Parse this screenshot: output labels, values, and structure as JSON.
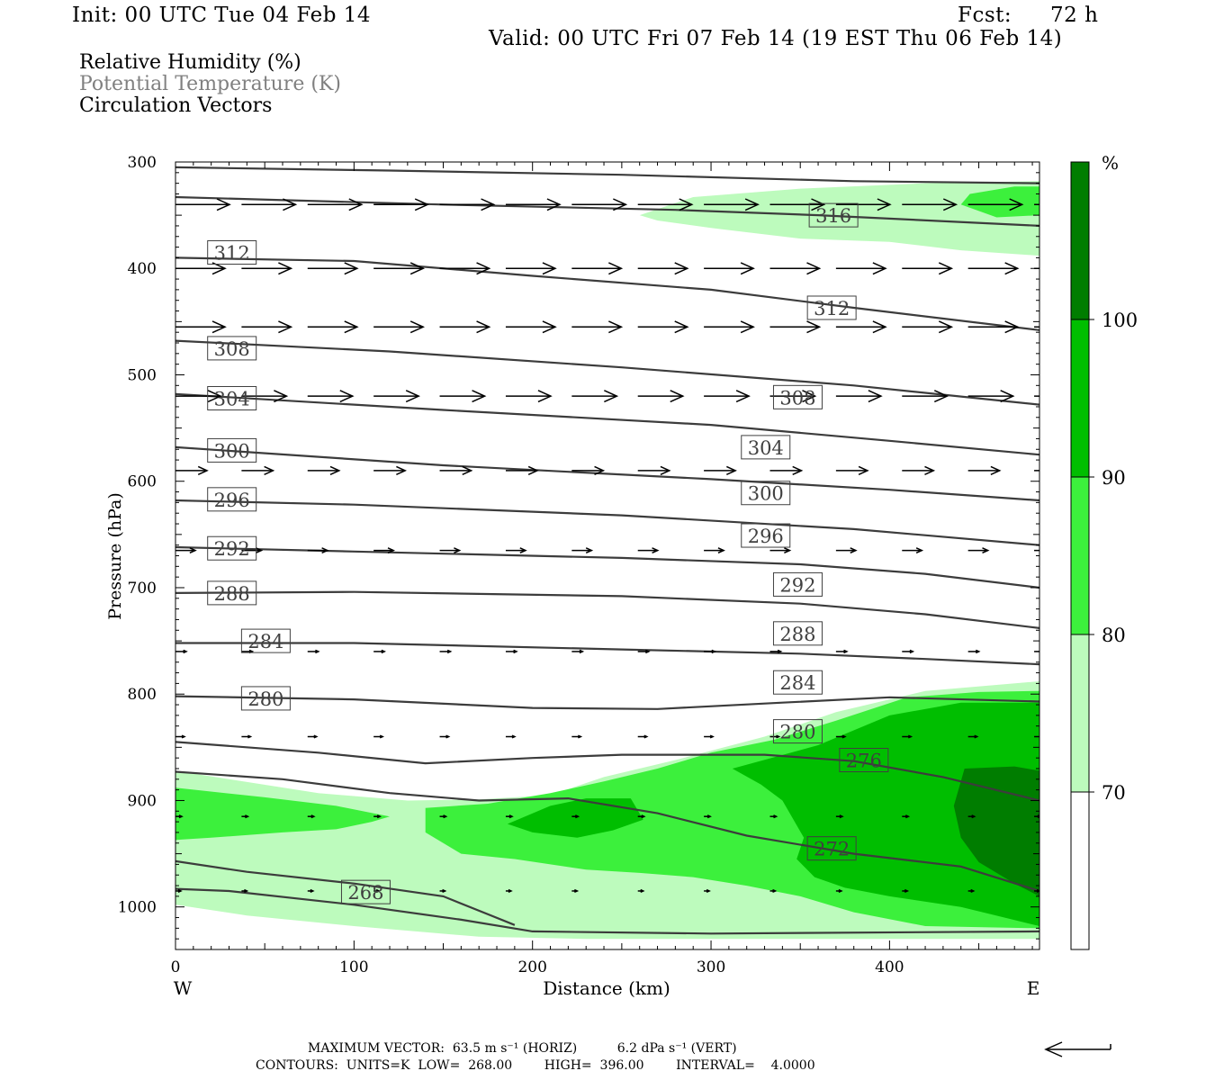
{
  "header": {
    "init": "Init: 00 UTC Tue 04 Feb 14",
    "fcst_label": "Fcst:",
    "fcst_value": "72 h",
    "valid": "Valid: 00 UTC Fri 07 Feb 14 (19 EST Thu 06 Feb 14)"
  },
  "legend": {
    "field1": "Relative Humidity (%)",
    "field2": "Potential Temperature (K)",
    "field3": "Circulation Vectors"
  },
  "colors": {
    "rh70": "#bdfbbd",
    "rh80": "#3cf03c",
    "rh90": "#00be00",
    "rh100": "#007d00",
    "theta_line": "#3c3c3c",
    "theta_label_text": "#404040"
  },
  "chart_data": {
    "type": "cross-section",
    "xlabel": "Distance (km)",
    "ylabel": "Pressure (hPa)",
    "x_left_label": "W",
    "x_right_label": "E",
    "xlim": [
      0,
      484
    ],
    "ylim": [
      300,
      1040
    ],
    "y_reversed": true,
    "x_ticks": [
      0,
      100,
      200,
      300,
      400
    ],
    "y_ticks": [
      300,
      400,
      500,
      600,
      700,
      800,
      900,
      1000
    ],
    "colorbar": {
      "unit": "%",
      "levels": [
        70,
        80,
        90,
        100
      ],
      "labels": [
        "70",
        "80",
        "90",
        "100"
      ]
    },
    "rh_regions": [
      {
        "level": 70,
        "points": [
          [
            260,
            350
          ],
          [
            290,
            333
          ],
          [
            350,
            325
          ],
          [
            420,
            320
          ],
          [
            484,
            318
          ],
          [
            484,
            388
          ],
          [
            440,
            383
          ],
          [
            400,
            375
          ],
          [
            350,
            372
          ],
          [
            300,
            362
          ],
          [
            270,
            355
          ]
        ]
      },
      {
        "level": 80,
        "points": [
          [
            440,
            340
          ],
          [
            445,
            330
          ],
          [
            470,
            323
          ],
          [
            484,
            323
          ],
          [
            484,
            350
          ],
          [
            460,
            352
          ]
        ]
      },
      {
        "level": 70,
        "points": [
          [
            0,
            872
          ],
          [
            30,
            880
          ],
          [
            80,
            893
          ],
          [
            130,
            900
          ],
          [
            170,
            899
          ],
          [
            210,
            895
          ],
          [
            240,
            878
          ],
          [
            280,
            862
          ],
          [
            330,
            840
          ],
          [
            370,
            817
          ],
          [
            420,
            797
          ],
          [
            484,
            788
          ],
          [
            484,
            1030
          ],
          [
            400,
            1030
          ],
          [
            330,
            1030
          ],
          [
            230,
            1030
          ],
          [
            170,
            1028
          ],
          [
            100,
            1018
          ],
          [
            40,
            1008
          ],
          [
            0,
            998
          ],
          [
            0,
            965
          ],
          [
            30,
            960
          ],
          [
            60,
            958
          ],
          [
            100,
            962
          ],
          [
            150,
            958
          ],
          [
            190,
            955
          ],
          [
            220,
            962
          ],
          [
            235,
            975
          ],
          [
            230,
            985
          ],
          [
            215,
            990
          ],
          [
            195,
            993
          ],
          [
            175,
            988
          ],
          [
            155,
            983
          ],
          [
            120,
            972
          ],
          [
            90,
            968
          ],
          [
            60,
            972
          ],
          [
            30,
            985
          ],
          [
            0,
            988
          ]
        ]
      },
      {
        "level": 80,
        "points": [
          [
            0,
            888
          ],
          [
            50,
            897
          ],
          [
            90,
            905
          ],
          [
            120,
            915
          ],
          [
            110,
            920
          ],
          [
            90,
            927
          ],
          [
            60,
            930
          ],
          [
            20,
            935
          ],
          [
            0,
            937
          ]
        ]
      },
      {
        "level": 80,
        "points": [
          [
            140,
            907
          ],
          [
            175,
            903
          ],
          [
            210,
            893
          ],
          [
            240,
            882
          ],
          [
            270,
            870
          ],
          [
            300,
            855
          ],
          [
            335,
            843
          ],
          [
            370,
            825
          ],
          [
            410,
            803
          ],
          [
            450,
            798
          ],
          [
            484,
            797
          ],
          [
            484,
            1020
          ],
          [
            420,
            1018
          ],
          [
            380,
            1005
          ],
          [
            350,
            990
          ],
          [
            320,
            980
          ],
          [
            290,
            972
          ],
          [
            260,
            968
          ],
          [
            230,
            965
          ],
          [
            210,
            960
          ],
          [
            190,
            955
          ],
          [
            160,
            950
          ],
          [
            140,
            930
          ]
        ]
      },
      {
        "level": 90,
        "points": [
          [
            186,
            922
          ],
          [
            210,
            905
          ],
          [
            230,
            898
          ],
          [
            255,
            898
          ],
          [
            262,
            918
          ],
          [
            245,
            928
          ],
          [
            225,
            935
          ],
          [
            200,
            930
          ]
        ]
      },
      {
        "level": 90,
        "points": [
          [
            312,
            870
          ],
          [
            360,
            848
          ],
          [
            400,
            820
          ],
          [
            440,
            808
          ],
          [
            484,
            808
          ],
          [
            484,
            1018
          ],
          [
            440,
            1000
          ],
          [
            400,
            990
          ],
          [
            375,
            982
          ],
          [
            358,
            972
          ],
          [
            348,
            955
          ],
          [
            352,
            935
          ],
          [
            340,
            900
          ],
          [
            328,
            885
          ]
        ]
      },
      {
        "level": 100,
        "points": [
          [
            442,
            870
          ],
          [
            470,
            868
          ],
          [
            484,
            872
          ],
          [
            484,
            990
          ],
          [
            470,
            978
          ],
          [
            450,
            958
          ],
          [
            440,
            935
          ],
          [
            436,
            905
          ]
        ]
      }
    ],
    "theta_lines": [
      {
        "label": "312",
        "points": [
          [
            0,
            305
          ],
          [
            120,
            308
          ],
          [
            250,
            312
          ],
          [
            380,
            318
          ],
          [
            484,
            320
          ]
        ]
      },
      {
        "label": "316",
        "points": [
          [
            0,
            333
          ],
          [
            150,
            340
          ],
          [
            280,
            345
          ],
          [
            360,
            350
          ],
          [
            484,
            360
          ]
        ]
      },
      {
        "label": "312",
        "points": [
          [
            0,
            390
          ],
          [
            100,
            393
          ],
          [
            200,
            407
          ],
          [
            300,
            420
          ],
          [
            380,
            437
          ],
          [
            484,
            458
          ]
        ]
      },
      {
        "label": "308",
        "points": [
          [
            0,
            468
          ],
          [
            120,
            478
          ],
          [
            250,
            493
          ],
          [
            380,
            510
          ],
          [
            484,
            528
          ]
        ]
      },
      {
        "label": "304",
        "points": [
          [
            0,
            518
          ],
          [
            150,
            533
          ],
          [
            300,
            547
          ],
          [
            400,
            562
          ],
          [
            484,
            575
          ]
        ]
      },
      {
        "label": "300",
        "points": [
          [
            0,
            568
          ],
          [
            150,
            585
          ],
          [
            300,
            598
          ],
          [
            400,
            608
          ],
          [
            484,
            618
          ]
        ]
      },
      {
        "label": "296",
        "points": [
          [
            0,
            618
          ],
          [
            100,
            622
          ],
          [
            250,
            632
          ],
          [
            380,
            645
          ],
          [
            484,
            660
          ]
        ]
      },
      {
        "label": "292",
        "points": [
          [
            0,
            662
          ],
          [
            100,
            666
          ],
          [
            250,
            672
          ],
          [
            350,
            678
          ],
          [
            420,
            687
          ],
          [
            484,
            700
          ]
        ]
      },
      {
        "label": "288",
        "points": [
          [
            0,
            705
          ],
          [
            100,
            704
          ],
          [
            250,
            708
          ],
          [
            350,
            715
          ],
          [
            420,
            725
          ],
          [
            484,
            738
          ]
        ]
      },
      {
        "label": "284",
        "points": [
          [
            0,
            752
          ],
          [
            100,
            752
          ],
          [
            250,
            758
          ],
          [
            350,
            762
          ],
          [
            420,
            767
          ],
          [
            484,
            772
          ]
        ]
      },
      {
        "label": "280",
        "points": [
          [
            0,
            802
          ],
          [
            100,
            805
          ],
          [
            200,
            813
          ],
          [
            270,
            814
          ],
          [
            340,
            808
          ],
          [
            400,
            803
          ],
          [
            484,
            807
          ]
        ]
      },
      {
        "label": "276",
        "points": [
          [
            0,
            845
          ],
          [
            80,
            855
          ],
          [
            140,
            865
          ],
          [
            200,
            860
          ],
          [
            250,
            857
          ],
          [
            330,
            857
          ],
          [
            380,
            863
          ],
          [
            430,
            878
          ],
          [
            484,
            900
          ]
        ]
      },
      {
        "label": "",
        "points": [
          [
            0,
            873
          ],
          [
            60,
            880
          ],
          [
            120,
            893
          ],
          [
            170,
            900
          ],
          [
            220,
            898
          ],
          [
            270,
            912
          ],
          [
            320,
            933
          ],
          [
            380,
            950
          ],
          [
            440,
            962
          ],
          [
            484,
            985
          ]
        ]
      },
      {
        "label": "268",
        "points": [
          [
            0,
            957
          ],
          [
            40,
            967
          ],
          [
            100,
            978
          ],
          [
            150,
            990
          ],
          [
            190,
            1017
          ]
        ]
      },
      {
        "label": "",
        "points": [
          [
            0,
            983
          ],
          [
            30,
            985
          ],
          [
            100,
            998
          ],
          [
            160,
            1012
          ],
          [
            200,
            1023
          ],
          [
            300,
            1025
          ],
          [
            484,
            1023
          ]
        ]
      }
    ],
    "theta_labels": [
      {
        "text": "316",
        "x": 355,
        "p": 350
      },
      {
        "text": "312",
        "x": 18,
        "p": 385
      },
      {
        "text": "312",
        "x": 354,
        "p": 437
      },
      {
        "text": "308",
        "x": 18,
        "p": 475
      },
      {
        "text": "308",
        "x": 335,
        "p": 521
      },
      {
        "text": "304",
        "x": 18,
        "p": 522
      },
      {
        "text": "304",
        "x": 317,
        "p": 568
      },
      {
        "text": "300",
        "x": 18,
        "p": 571
      },
      {
        "text": "300",
        "x": 317,
        "p": 611
      },
      {
        "text": "296",
        "x": 18,
        "p": 617
      },
      {
        "text": "296",
        "x": 317,
        "p": 651
      },
      {
        "text": "292",
        "x": 18,
        "p": 663
      },
      {
        "text": "292",
        "x": 335,
        "p": 697
      },
      {
        "text": "288",
        "x": 18,
        "p": 705
      },
      {
        "text": "288",
        "x": 335,
        "p": 743
      },
      {
        "text": "284",
        "x": 37,
        "p": 750
      },
      {
        "text": "284",
        "x": 335,
        "p": 789
      },
      {
        "text": "280",
        "x": 37,
        "p": 804
      },
      {
        "text": "280",
        "x": 335,
        "p": 835
      },
      {
        "text": "276",
        "x": 372,
        "p": 862
      },
      {
        "text": "272",
        "x": 354,
        "p": 945
      },
      {
        "text": "268",
        "x": 93,
        "p": 986
      }
    ],
    "vector_rows": [
      {
        "p": 340,
        "x0": 0,
        "step": 37,
        "count": 27,
        "len": 60,
        "dy": 0
      },
      {
        "p": 400,
        "x0": 0,
        "step": 37,
        "count": 26,
        "len": 55,
        "dy": 0
      },
      {
        "p": 455,
        "x0": 0,
        "step": 37,
        "count": 26,
        "len": 55,
        "dy": 0
      },
      {
        "p": 520,
        "x0": 0,
        "step": 37,
        "count": 26,
        "len": 50,
        "dy": 0
      },
      {
        "p": 590,
        "x0": 0,
        "step": 37,
        "count": 26,
        "len": 35,
        "dy": 0
      },
      {
        "p": 665,
        "x0": 0,
        "step": 37,
        "count": 25,
        "len": 22,
        "dy": 0
      },
      {
        "p": 760,
        "x0": 0,
        "step": 37,
        "count": 25,
        "len": 12,
        "dy": 0
      },
      {
        "p": 840,
        "x0": 0,
        "step": 37,
        "count": 25,
        "len": 10,
        "dy": 0
      },
      {
        "p": 915,
        "x0": 0,
        "step": 37,
        "count": 25,
        "len": 7,
        "dy": 0
      },
      {
        "p": 985,
        "x0": 0,
        "step": 37,
        "count": 25,
        "len": 6,
        "dy": 0
      }
    ]
  },
  "footer": {
    "line1": "MAXIMUM VECTOR:  63.5 m s⁻¹ (HORIZ)          6.2 dPa s⁻¹ (VERT)",
    "line2": "CONTOURS:  UNITS=K  LOW=  268.00        HIGH=  396.00        INTERVAL=    4.0000"
  }
}
